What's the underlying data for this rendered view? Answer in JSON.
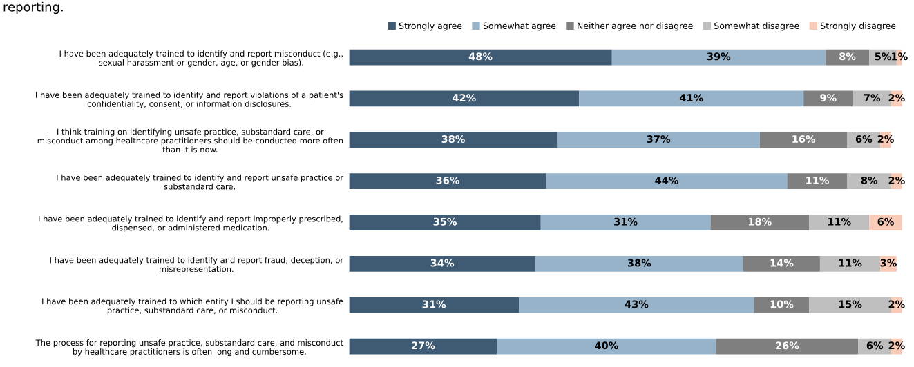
{
  "chart_data": {
    "type": "bar",
    "orientation": "horizontal",
    "stacked": true,
    "title": "reporting.",
    "legend": "top right",
    "categories": [
      "I have been adequately trained to identify and report misconduct (e.g.,\nsexual harassment or gender, age, or gender bias).",
      "I have been adequately trained to identify and report violations of a patient's\nconfidentiality, consent, or information disclosures.",
      "I think training on identifying unsafe practice, substandard care, or\nmisconduct among healthcare practitioners should be conducted more often\nthan it is now.",
      "I have been adequately trained to identify and report unsafe practice or\nsubstandard care.",
      "I have been adequately trained to identify and report improperly prescribed,\ndispensed, or administered medication.",
      "I have been adequately trained to identify and report fraud, deception, or\nmisrepresentation.",
      "I have been adequately trained to which entity I should be reporting unsafe\npractice, substandard care, or misconduct.",
      "The process for reporting unsafe practice, substandard care, and misconduct\nby healthcare practitioners is often long and cumbersome."
    ],
    "series": [
      {
        "name": "Strongly agree",
        "color": "#3f5a73",
        "values": [
          48,
          42,
          38,
          36,
          35,
          34,
          31,
          27
        ],
        "value_labels": [
          "48%",
          "42%",
          "38%",
          "36%",
          "35%",
          "34%",
          "31%",
          "27%"
        ]
      },
      {
        "name": "Somewhat agree",
        "color": "#97b3c9",
        "values": [
          39,
          41,
          37,
          44,
          31,
          38,
          43,
          40
        ],
        "value_labels": [
          "39%",
          "41%",
          "37%",
          "44%",
          "31%",
          "38%",
          "43%",
          "40%"
        ]
      },
      {
        "name": "Neither agree nor disagree",
        "color": "#7f7f7f",
        "values": [
          8,
          9,
          16,
          11,
          18,
          14,
          10,
          26
        ],
        "value_labels": [
          "8%",
          "9%",
          "16%",
          "11%",
          "18%",
          "14%",
          "10%",
          "26%"
        ]
      },
      {
        "name": "Somewhat disagree",
        "color": "#bfbfbf",
        "values": [
          5,
          7,
          6,
          8,
          11,
          11,
          15,
          6
        ],
        "value_labels": [
          "5%",
          "7%",
          "6%",
          "8%",
          "11%",
          "11%",
          "15%",
          "6%"
        ]
      },
      {
        "name": "Strongly disagree",
        "color": "#f8cbb8",
        "values": [
          1,
          2,
          2,
          2,
          6,
          3,
          2,
          2
        ],
        "value_labels": [
          "1%",
          "2%",
          "2%",
          "2%",
          "6%",
          "3%",
          "2%",
          "2%"
        ]
      }
    ]
  }
}
